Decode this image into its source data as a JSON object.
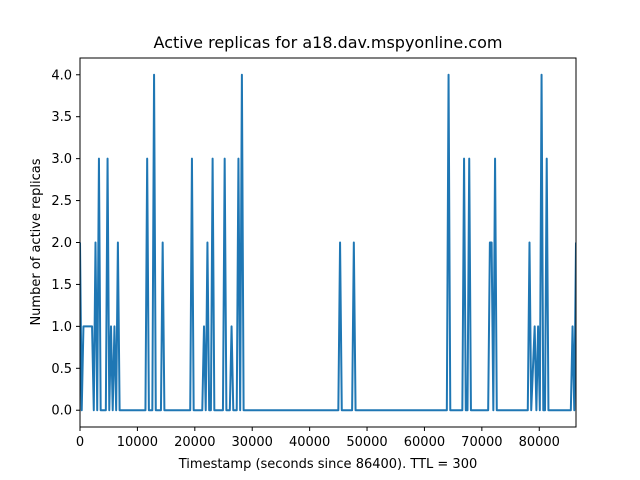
{
  "chart_data": {
    "type": "line",
    "title": "Active replicas for a18.dav.mspyonline.com",
    "xlabel": "Timestamp (seconds since 86400). TTL = 300",
    "ylabel": "Number of active replicas",
    "xlim": [
      0,
      86400
    ],
    "ylim": [
      -0.2,
      4.2
    ],
    "x_ticks": [
      0,
      10000,
      20000,
      30000,
      40000,
      50000,
      60000,
      70000,
      80000
    ],
    "x_tick_labels": [
      "0",
      "10000",
      "20000",
      "30000",
      "40000",
      "50000",
      "60000",
      "70000",
      "80000"
    ],
    "y_ticks": [
      0,
      0.5,
      1,
      1.5,
      2,
      2.5,
      3,
      3.5,
      4
    ],
    "y_tick_labels": [
      "0.0",
      "0.5",
      "1.0",
      "1.5",
      "2.0",
      "2.5",
      "3.0",
      "3.5",
      "4.0"
    ],
    "grid": false,
    "colors": {
      "series": "#1f77b4"
    },
    "x": [
      0,
      300,
      600,
      900,
      1200,
      1500,
      1800,
      2100,
      2400,
      2700,
      3000,
      3300,
      3600,
      3900,
      4200,
      4500,
      4800,
      5100,
      5400,
      5700,
      6000,
      6300,
      6600,
      6900,
      7200,
      7500,
      7800,
      8100,
      8400,
      8700,
      9000,
      11400,
      11700,
      12000,
      12300,
      12600,
      12900,
      13200,
      13500,
      13800,
      14100,
      14400,
      14700,
      15000,
      15300,
      19200,
      19500,
      19800,
      21300,
      21600,
      21900,
      22200,
      22500,
      22800,
      23100,
      23400,
      23700,
      24000,
      24900,
      25200,
      25500,
      26100,
      26400,
      26700,
      27300,
      27600,
      27900,
      28200,
      28500,
      28800,
      29100,
      29400,
      45000,
      45300,
      45600,
      47400,
      47700,
      48000,
      48300,
      63900,
      64200,
      64500,
      66600,
      66900,
      67200,
      67500,
      67800,
      68100,
      71100,
      71400,
      71700,
      72000,
      72300,
      72600,
      72900,
      78000,
      78300,
      78600,
      79200,
      79500,
      79800,
      80100,
      80400,
      80700,
      81000,
      81300,
      81600,
      81900,
      85500,
      85800,
      86100,
      86400
    ],
    "y": [
      2,
      0,
      1,
      1,
      1,
      1,
      1,
      1,
      0,
      2,
      0,
      3,
      0,
      0,
      0,
      0,
      3,
      0,
      1,
      0,
      1,
      0,
      2,
      0,
      0,
      0,
      0,
      0,
      0,
      0,
      0,
      0,
      3,
      0,
      0,
      0,
      4,
      0,
      0,
      0,
      0,
      2,
      0,
      0,
      0,
      0,
      3,
      0,
      0,
      1,
      0,
      2,
      0,
      0,
      3,
      0,
      0,
      0,
      0,
      3,
      0,
      0,
      1,
      0,
      0,
      3,
      0,
      4,
      0,
      0,
      0,
      0,
      0,
      2,
      0,
      0,
      2,
      0,
      0,
      0,
      4,
      0,
      0,
      3,
      0,
      0,
      3,
      0,
      0,
      2,
      2,
      0,
      3,
      0,
      0,
      0,
      2,
      0,
      1,
      0,
      1,
      0,
      4,
      0,
      0,
      3,
      0,
      0,
      0,
      1,
      0,
      2
    ]
  }
}
